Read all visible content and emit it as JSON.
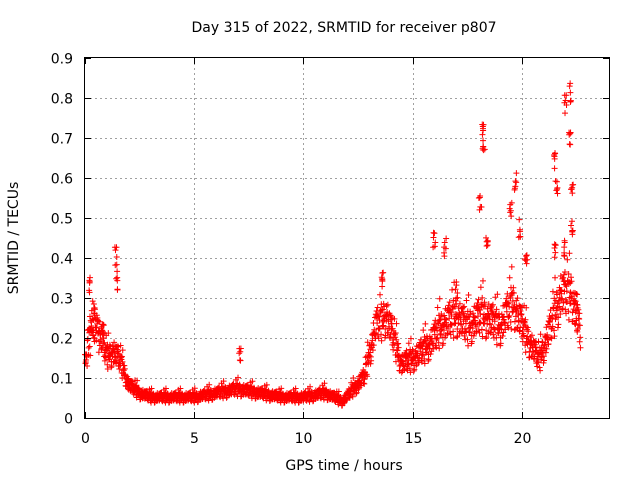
{
  "chart_data": {
    "type": "scatter",
    "title": "Day 315 of 2022, SRMTID for receiver p807",
    "xlabel": "GPS time / hours",
    "ylabel": "SRMTID / TECUs",
    "xlim": [
      0,
      24
    ],
    "ylim": [
      0,
      0.9
    ],
    "xticks": [
      0,
      5,
      10,
      15,
      20
    ],
    "xtick_labels": [
      "0",
      "5",
      "10",
      "15",
      "20"
    ],
    "yticks": [
      0,
      0.1,
      0.2,
      0.3,
      0.4,
      0.5,
      0.6,
      0.7,
      0.8,
      0.9
    ],
    "ytick_labels": [
      "0",
      "0.1",
      "0.2",
      "0.3",
      "0.4",
      "0.5",
      "0.6",
      "0.7",
      "0.8",
      "0.9"
    ],
    "grid": true,
    "marker": "plus",
    "series": [
      {
        "name": "SRMTID",
        "color": "#ff0000",
        "profile": {
          "x": [
            0.0,
            0.3,
            0.7,
            1.0,
            1.3,
            1.6,
            2.0,
            2.5,
            3.0,
            4.0,
            5.0,
            6.0,
            7.0,
            8.0,
            9.0,
            10.0,
            11.0,
            11.8,
            12.3,
            12.8,
            13.3,
            13.8,
            14.5,
            15.2,
            15.8,
            16.3,
            17.0,
            17.5,
            18.2,
            19.0,
            19.6,
            20.2,
            20.8,
            21.2,
            21.8,
            22.3,
            22.7
          ],
          "y": [
            0.15,
            0.22,
            0.2,
            0.15,
            0.16,
            0.14,
            0.08,
            0.06,
            0.05,
            0.05,
            0.05,
            0.06,
            0.07,
            0.06,
            0.05,
            0.05,
            0.06,
            0.04,
            0.07,
            0.1,
            0.22,
            0.25,
            0.13,
            0.15,
            0.18,
            0.22,
            0.25,
            0.22,
            0.25,
            0.22,
            0.28,
            0.2,
            0.14,
            0.2,
            0.3,
            0.3,
            0.2
          ]
        },
        "peaks": [
          {
            "x": 0.2,
            "y": 0.36
          },
          {
            "x": 0.4,
            "y": 0.31
          },
          {
            "x": 0.8,
            "y": 0.25
          },
          {
            "x": 1.4,
            "y": 0.43
          },
          {
            "x": 1.45,
            "y": 0.37
          },
          {
            "x": 7.1,
            "y": 0.19
          },
          {
            "x": 13.6,
            "y": 0.38
          },
          {
            "x": 16.0,
            "y": 0.47
          },
          {
            "x": 16.5,
            "y": 0.45
          },
          {
            "x": 17.0,
            "y": 0.34
          },
          {
            "x": 18.2,
            "y": 0.74
          },
          {
            "x": 18.25,
            "y": 0.71
          },
          {
            "x": 18.1,
            "y": 0.57
          },
          {
            "x": 18.4,
            "y": 0.46
          },
          {
            "x": 19.5,
            "y": 0.55
          },
          {
            "x": 19.7,
            "y": 0.62
          },
          {
            "x": 19.9,
            "y": 0.5
          },
          {
            "x": 20.2,
            "y": 0.42
          },
          {
            "x": 21.5,
            "y": 0.67
          },
          {
            "x": 21.6,
            "y": 0.61
          },
          {
            "x": 21.5,
            "y": 0.45
          },
          {
            "x": 22.0,
            "y": 0.81
          },
          {
            "x": 22.2,
            "y": 0.84
          },
          {
            "x": 22.2,
            "y": 0.73
          },
          {
            "x": 22.3,
            "y": 0.6
          },
          {
            "x": 22.3,
            "y": 0.5
          },
          {
            "x": 22.0,
            "y": 0.45
          },
          {
            "x": 22.5,
            "y": 0.31
          }
        ]
      }
    ]
  }
}
